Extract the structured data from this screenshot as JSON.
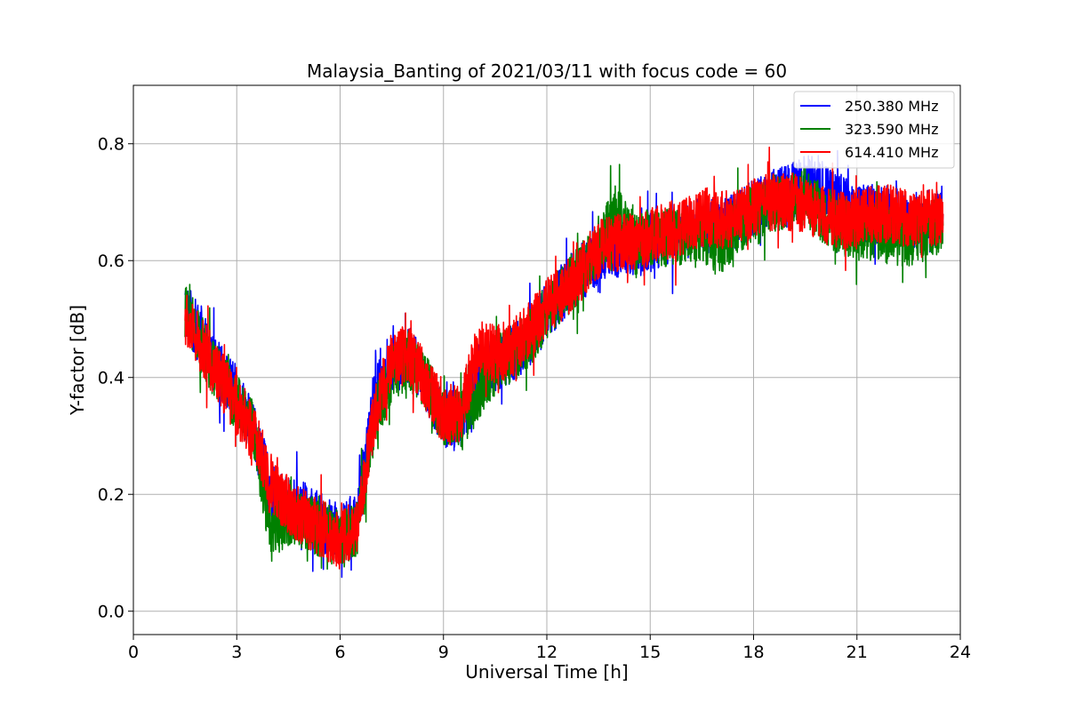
{
  "chart_data": {
    "type": "line",
    "title": "Malaysia_Banting of 2021/03/11 with focus code = 60",
    "xlabel": "Universal Time [h]",
    "ylabel": "Y-factor [dB]",
    "xlim": [
      0,
      24
    ],
    "ylim": [
      -0.04,
      0.9
    ],
    "xticks": [
      0,
      3,
      6,
      9,
      12,
      15,
      18,
      21,
      24
    ],
    "xtick_labels": [
      "0",
      "3",
      "6",
      "9",
      "12",
      "15",
      "18",
      "21",
      "24"
    ],
    "yticks": [
      0.0,
      0.2,
      0.4,
      0.6,
      0.8
    ],
    "ytick_labels": [
      "0.0",
      "0.2",
      "0.4",
      "0.6",
      "0.8"
    ],
    "grid": true,
    "legend_position": "top-right",
    "series": [
      {
        "name": "250.380 MHz",
        "color": "#0000ff",
        "noise_amplitude": 0.05,
        "x": [
          1.5,
          2.0,
          2.5,
          3.0,
          3.5,
          4.0,
          4.5,
          5.0,
          5.5,
          6.0,
          6.5,
          7.0,
          7.5,
          8.0,
          8.5,
          9.0,
          9.5,
          10.0,
          10.5,
          11.0,
          11.5,
          12.0,
          12.5,
          13.0,
          13.5,
          14.0,
          14.5,
          15.0,
          15.5,
          16.0,
          16.5,
          17.0,
          17.5,
          18.0,
          18.5,
          19.0,
          19.5,
          20.0,
          20.5,
          21.0,
          21.5,
          22.0,
          22.5,
          23.0,
          23.5
        ],
        "y": [
          0.52,
          0.46,
          0.41,
          0.37,
          0.31,
          0.2,
          0.18,
          0.17,
          0.15,
          0.13,
          0.16,
          0.37,
          0.42,
          0.44,
          0.39,
          0.33,
          0.33,
          0.41,
          0.42,
          0.44,
          0.47,
          0.51,
          0.55,
          0.58,
          0.61,
          0.62,
          0.62,
          0.63,
          0.64,
          0.65,
          0.66,
          0.66,
          0.67,
          0.69,
          0.71,
          0.72,
          0.73,
          0.73,
          0.7,
          0.68,
          0.68,
          0.68,
          0.67,
          0.67,
          0.68
        ]
      },
      {
        "name": "323.590 MHz",
        "color": "#008000",
        "noise_amplitude": 0.05,
        "x": [
          1.5,
          2.0,
          2.5,
          3.0,
          3.5,
          4.0,
          4.5,
          5.0,
          5.5,
          6.0,
          6.5,
          7.0,
          7.5,
          8.0,
          8.5,
          9.0,
          9.5,
          10.0,
          10.5,
          11.0,
          11.5,
          12.0,
          12.5,
          13.0,
          13.5,
          14.0,
          14.5,
          15.0,
          15.5,
          16.0,
          16.5,
          17.0,
          17.5,
          18.0,
          18.5,
          19.0,
          19.5,
          20.0,
          20.5,
          21.0,
          21.5,
          22.0,
          22.5,
          23.0,
          23.5
        ],
        "y": [
          0.51,
          0.45,
          0.4,
          0.36,
          0.31,
          0.13,
          0.16,
          0.15,
          0.14,
          0.12,
          0.14,
          0.33,
          0.41,
          0.43,
          0.39,
          0.33,
          0.33,
          0.37,
          0.42,
          0.44,
          0.47,
          0.51,
          0.55,
          0.58,
          0.62,
          0.68,
          0.64,
          0.64,
          0.64,
          0.64,
          0.65,
          0.62,
          0.66,
          0.68,
          0.7,
          0.7,
          0.71,
          0.68,
          0.66,
          0.65,
          0.65,
          0.64,
          0.64,
          0.65,
          0.66
        ]
      },
      {
        "name": "614.410 MHz",
        "color": "#ff0000",
        "noise_amplitude": 0.05,
        "x": [
          1.5,
          2.0,
          2.5,
          3.0,
          3.5,
          4.0,
          4.5,
          5.0,
          5.5,
          6.0,
          6.5,
          7.0,
          7.5,
          8.0,
          8.5,
          9.0,
          9.5,
          10.0,
          10.5,
          11.0,
          11.5,
          12.0,
          12.5,
          13.0,
          13.5,
          14.0,
          14.5,
          15.0,
          15.5,
          16.0,
          16.5,
          17.0,
          17.5,
          18.0,
          18.5,
          19.0,
          19.5,
          20.0,
          20.5,
          21.0,
          21.5,
          22.0,
          22.5,
          23.0,
          23.5
        ],
        "y": [
          0.5,
          0.45,
          0.4,
          0.35,
          0.3,
          0.22,
          0.18,
          0.16,
          0.14,
          0.12,
          0.15,
          0.34,
          0.43,
          0.44,
          0.39,
          0.33,
          0.34,
          0.45,
          0.44,
          0.45,
          0.48,
          0.52,
          0.55,
          0.58,
          0.62,
          0.63,
          0.63,
          0.64,
          0.65,
          0.66,
          0.67,
          0.67,
          0.67,
          0.69,
          0.7,
          0.7,
          0.7,
          0.68,
          0.67,
          0.67,
          0.68,
          0.68,
          0.67,
          0.67,
          0.68
        ]
      }
    ]
  }
}
